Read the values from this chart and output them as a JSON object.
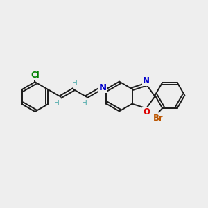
{
  "background_color": "#eeeeee",
  "bond_color": "#1a1a1a",
  "bond_width": 1.4,
  "atom_colors": {
    "Cl": "#008000",
    "N": "#0000cc",
    "O": "#dd0000",
    "Br": "#bb5500",
    "H": "#4aa8a8",
    "C": "#1a1a1a"
  },
  "font_size_atom": 8.5,
  "font_size_h": 7.5,
  "dbo": 0.065
}
